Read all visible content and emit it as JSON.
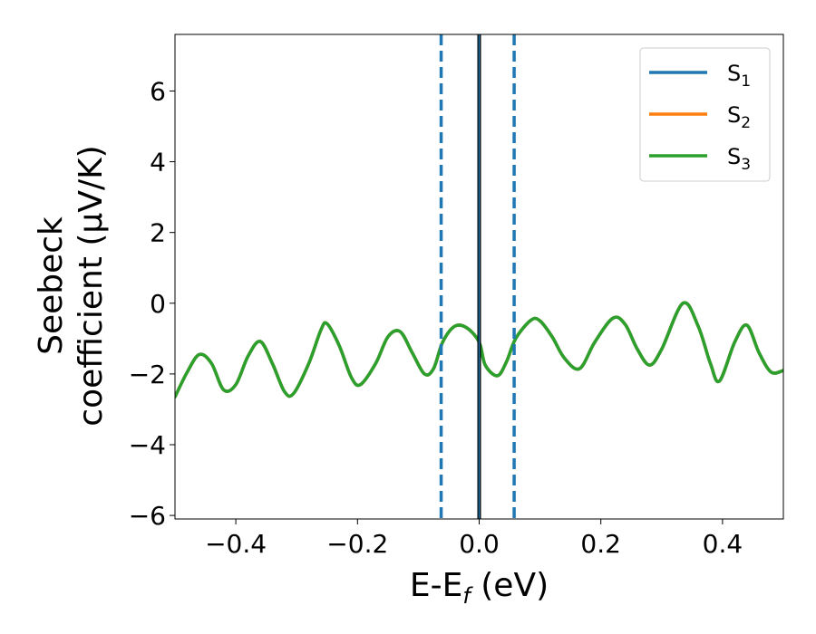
{
  "chart_data": {
    "type": "line",
    "title": "",
    "xlabel": {
      "main": "E-E",
      "sub": "f",
      "tail": " (eV)"
    },
    "ylabel": {
      "line1": "Seebeck",
      "line2": "coefficient  (μV/K)"
    },
    "xlim": [
      -0.5,
      0.5
    ],
    "ylim": [
      -6.1,
      7.6
    ],
    "xticks": [
      -0.4,
      -0.2,
      0.0,
      0.2,
      0.4
    ],
    "xtick_labels": [
      "−0.4",
      "−0.2",
      "0.0",
      "0.2",
      "0.4"
    ],
    "yticks": [
      -6,
      -4,
      -2,
      0,
      2,
      4,
      6
    ],
    "ytick_labels": [
      "−6",
      "−4",
      "−2",
      "0",
      "2",
      "4",
      "6"
    ],
    "grid": false,
    "legend_position": "top-right",
    "series": [
      {
        "name": "S",
        "name_sub": "1",
        "color": "#1f77b4",
        "x": [
          -0.5,
          -0.48,
          -0.46,
          -0.44,
          -0.42,
          -0.4,
          -0.38,
          -0.36,
          -0.34,
          -0.32,
          -0.305,
          -0.28,
          -0.26,
          -0.25,
          -0.23,
          -0.21,
          -0.195,
          -0.17,
          -0.15,
          -0.13,
          -0.11,
          -0.09,
          -0.075,
          -0.06,
          -0.04,
          -0.02,
          0.0,
          0.01,
          0.03,
          0.045,
          0.06,
          0.085,
          0.1,
          0.12,
          0.14,
          0.165,
          0.19,
          0.22,
          0.24,
          0.26,
          0.28,
          0.3,
          0.335,
          0.36,
          0.38,
          0.395,
          0.42,
          0.44,
          0.46,
          0.48,
          0.5
        ],
        "y": [
          -2.65,
          -1.95,
          -1.45,
          -1.7,
          -2.45,
          -2.3,
          -1.5,
          -1.08,
          -1.7,
          -2.5,
          -2.55,
          -1.7,
          -0.75,
          -0.58,
          -1.2,
          -2.1,
          -2.3,
          -1.7,
          -0.95,
          -0.8,
          -1.4,
          -2.0,
          -1.85,
          -1.1,
          -0.65,
          -0.7,
          -1.1,
          -1.75,
          -2.05,
          -1.65,
          -1.0,
          -0.48,
          -0.5,
          -0.95,
          -1.55,
          -1.85,
          -1.1,
          -0.42,
          -0.6,
          -1.3,
          -1.75,
          -1.3,
          0.0,
          -0.65,
          -1.7,
          -2.2,
          -1.1,
          -0.62,
          -1.4,
          -1.95,
          -1.9
        ]
      },
      {
        "name": "S",
        "name_sub": "2",
        "color": "#ff7f0e",
        "x": [
          -0.5,
          -0.48,
          -0.46,
          -0.44,
          -0.42,
          -0.4,
          -0.38,
          -0.36,
          -0.34,
          -0.32,
          -0.305,
          -0.28,
          -0.26,
          -0.25,
          -0.23,
          -0.21,
          -0.195,
          -0.17,
          -0.15,
          -0.13,
          -0.11,
          -0.09,
          -0.075,
          -0.06,
          -0.04,
          -0.02,
          0.0,
          0.01,
          0.03,
          0.045,
          0.06,
          0.085,
          0.1,
          0.12,
          0.14,
          0.165,
          0.19,
          0.22,
          0.24,
          0.26,
          0.28,
          0.3,
          0.335,
          0.36,
          0.38,
          0.395,
          0.42,
          0.44,
          0.46,
          0.48,
          0.5
        ],
        "y": [
          -2.65,
          -1.95,
          -1.45,
          -1.7,
          -2.45,
          -2.3,
          -1.5,
          -1.08,
          -1.7,
          -2.5,
          -2.55,
          -1.7,
          -0.75,
          -0.58,
          -1.2,
          -2.1,
          -2.3,
          -1.7,
          -0.95,
          -0.8,
          -1.4,
          -2.0,
          -1.85,
          -1.1,
          -0.65,
          -0.7,
          -1.1,
          -1.75,
          -2.05,
          -1.65,
          -1.0,
          -0.48,
          -0.5,
          -0.95,
          -1.55,
          -1.85,
          -1.1,
          -0.42,
          -0.6,
          -1.3,
          -1.75,
          -1.3,
          0.0,
          -0.65,
          -1.7,
          -2.2,
          -1.1,
          -0.62,
          -1.4,
          -1.95,
          -1.9
        ]
      },
      {
        "name": "S",
        "name_sub": "3",
        "color": "#2ca02c",
        "x": [
          -0.5,
          -0.48,
          -0.46,
          -0.44,
          -0.42,
          -0.4,
          -0.38,
          -0.36,
          -0.34,
          -0.32,
          -0.305,
          -0.28,
          -0.26,
          -0.25,
          -0.23,
          -0.21,
          -0.195,
          -0.17,
          -0.15,
          -0.13,
          -0.11,
          -0.09,
          -0.075,
          -0.06,
          -0.04,
          -0.02,
          0.0,
          0.01,
          0.03,
          0.045,
          0.06,
          0.085,
          0.1,
          0.12,
          0.14,
          0.165,
          0.19,
          0.22,
          0.24,
          0.26,
          0.28,
          0.3,
          0.335,
          0.36,
          0.38,
          0.395,
          0.42,
          0.44,
          0.46,
          0.48,
          0.5
        ],
        "y": [
          -2.65,
          -1.95,
          -1.45,
          -1.7,
          -2.45,
          -2.3,
          -1.5,
          -1.08,
          -1.7,
          -2.5,
          -2.55,
          -1.7,
          -0.75,
          -0.58,
          -1.2,
          -2.1,
          -2.3,
          -1.7,
          -0.95,
          -0.8,
          -1.4,
          -2.0,
          -1.85,
          -1.1,
          -0.65,
          -0.7,
          -1.1,
          -1.75,
          -2.05,
          -1.65,
          -1.0,
          -0.48,
          -0.5,
          -0.95,
          -1.55,
          -1.85,
          -1.1,
          -0.42,
          -0.6,
          -1.3,
          -1.75,
          -1.3,
          0.0,
          -0.65,
          -1.7,
          -2.2,
          -1.1,
          -0.62,
          -1.4,
          -1.95,
          -1.9
        ]
      }
    ],
    "vertical_lines": [
      {
        "x": -0.0625,
        "color": "#1f77b4",
        "style": "dashed"
      },
      {
        "x": 0.0,
        "color": "#000000",
        "style": "solid"
      },
      {
        "x": 0.0,
        "color": "#1f77b4",
        "style": "solid"
      },
      {
        "x": 0.0575,
        "color": "#1f77b4",
        "style": "dashed"
      }
    ]
  }
}
